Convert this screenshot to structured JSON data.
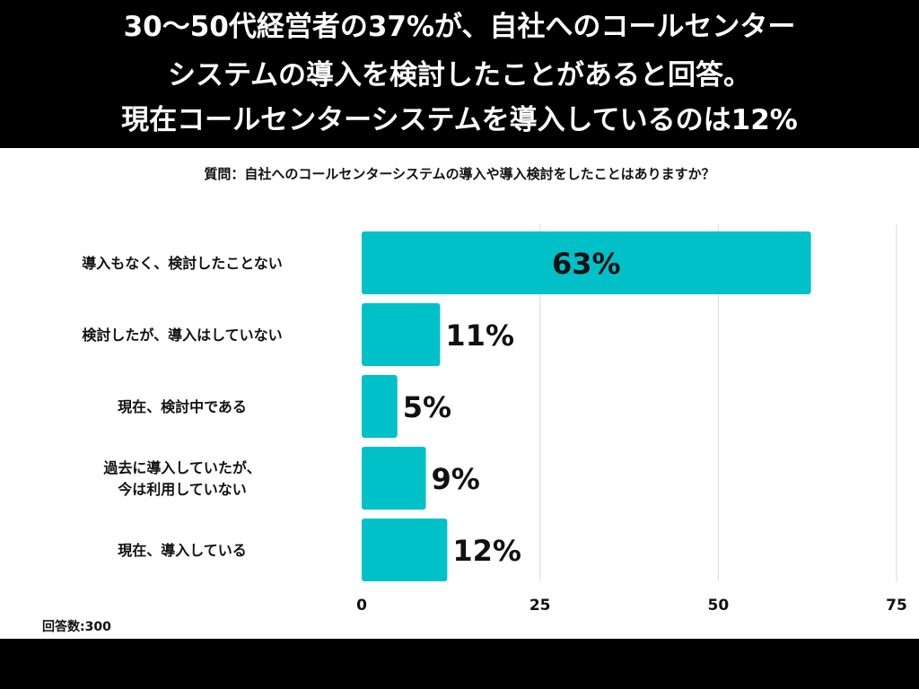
{
  "header": {
    "line1": "30〜50代経営者の37%が、自社へのコールセンター",
    "line2": "システムの導入を検討したことがあると回答。",
    "line3": "現在コールセンターシステムを導入しているのは12%"
  },
  "subtitle": "質問：自社へのコールセンターシステムの導入や導入検討をしたことはありますか？",
  "note": "回答数:300",
  "colors": {
    "bar": "#00C0C8",
    "grid": "#d9d9d9",
    "header_bg": "#000000"
  },
  "chart_data": {
    "type": "bar",
    "orientation": "horizontal",
    "categories": [
      [
        "導入もなく、検討したことない"
      ],
      [
        "検討したが、導入はしていない"
      ],
      [
        "現在、検討中である"
      ],
      [
        "過去に導入していたが、",
        "今は利用していない"
      ],
      [
        "現在、導入している"
      ]
    ],
    "values": [
      63,
      11,
      5,
      9,
      12
    ],
    "data_labels": [
      "63%",
      "11%",
      "5%",
      "9%",
      "12%"
    ],
    "xlim": [
      0,
      75
    ],
    "xticks": [
      0,
      25,
      50,
      75
    ],
    "grid": true
  }
}
